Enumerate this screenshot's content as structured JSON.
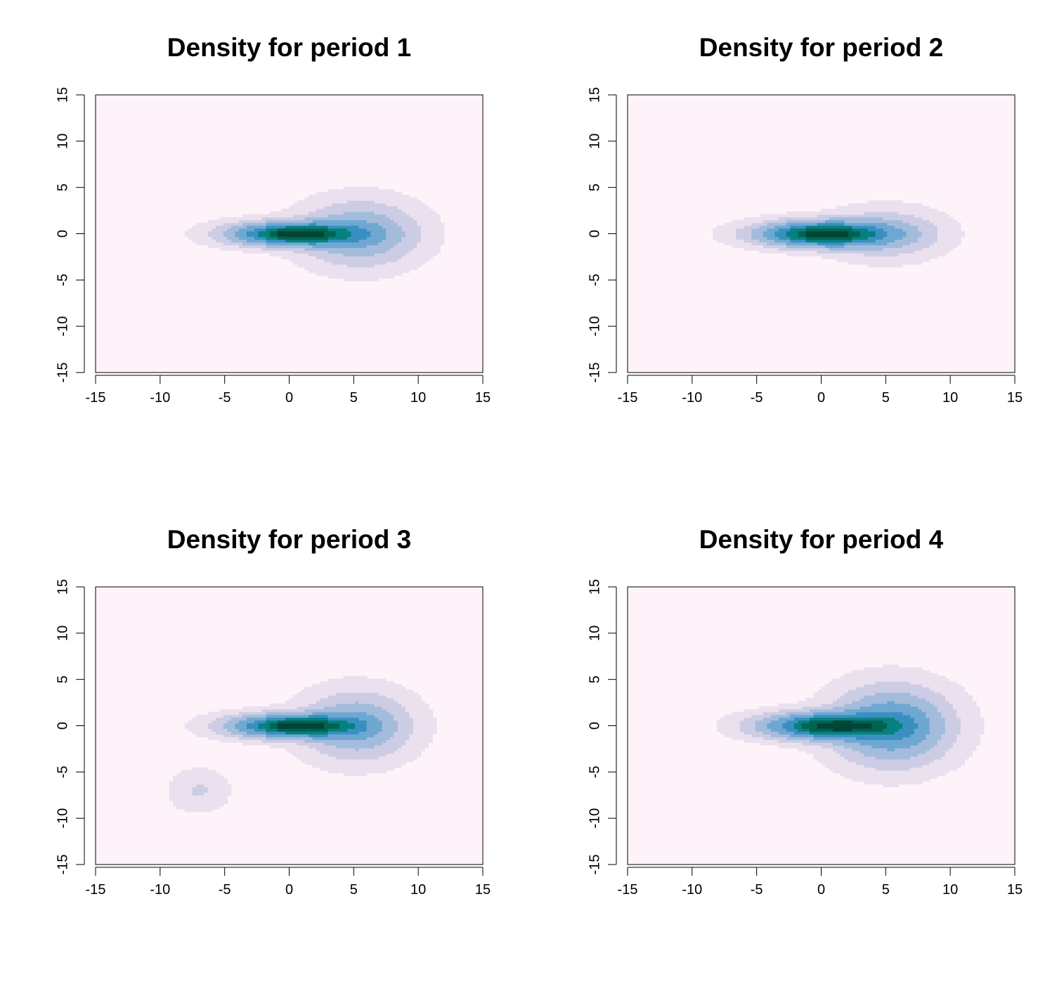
{
  "chart_data": [
    {
      "type": "heatmap",
      "title": "Density for period 1",
      "xlim": [
        -15,
        15
      ],
      "ylim": [
        -15,
        15
      ],
      "xticks": [
        "-15",
        "-10",
        "-5",
        "0",
        "5",
        "10",
        "15"
      ],
      "yticks": [
        "-15",
        "-10",
        "-5",
        "0",
        "5",
        "10",
        "15"
      ],
      "grid": false,
      "components": [
        {
          "cx": 0.5,
          "cy": 0,
          "sx": 2.9,
          "sy": 0.75,
          "w": 1.0
        },
        {
          "cx": 5.5,
          "cy": 0,
          "sx": 2.6,
          "sy": 2.0,
          "w": 0.3
        }
      ]
    },
    {
      "type": "heatmap",
      "title": "Density for period 2",
      "xlim": [
        -15,
        15
      ],
      "ylim": [
        -15,
        15
      ],
      "xticks": [
        "-15",
        "-10",
        "-5",
        "0",
        "5",
        "10",
        "15"
      ],
      "yticks": [
        "-15",
        "-10",
        "-5",
        "0",
        "5",
        "10",
        "15"
      ],
      "grid": false,
      "components": [
        {
          "cx": 0.2,
          "cy": 0,
          "sx": 2.9,
          "sy": 0.8,
          "w": 1.0
        },
        {
          "cx": 5.0,
          "cy": 0,
          "sx": 2.5,
          "sy": 1.5,
          "w": 0.2
        }
      ]
    },
    {
      "type": "heatmap",
      "title": "Density for period 3",
      "xlim": [
        -15,
        15
      ],
      "ylim": [
        -15,
        15
      ],
      "xticks": [
        "-15",
        "-10",
        "-5",
        "0",
        "5",
        "10",
        "15"
      ],
      "yticks": [
        "-15",
        "-10",
        "-5",
        "0",
        "5",
        "10",
        "15"
      ],
      "grid": false,
      "components": [
        {
          "cx": 0.5,
          "cy": 0,
          "sx": 2.9,
          "sy": 0.75,
          "w": 1.0
        },
        {
          "cx": 5.2,
          "cy": 0,
          "sx": 2.4,
          "sy": 2.1,
          "w": 0.3
        },
        {
          "cx": -7.0,
          "cy": -7.0,
          "sx": 1.3,
          "sy": 1.3,
          "w": 0.07
        }
      ]
    },
    {
      "type": "heatmap",
      "title": "Density for period 4",
      "xlim": [
        -15,
        15
      ],
      "ylim": [
        -15,
        15
      ],
      "xticks": [
        "-15",
        "-10",
        "-5",
        "0",
        "5",
        "10",
        "15"
      ],
      "yticks": [
        "-15",
        "-10",
        "-5",
        "0",
        "5",
        "10",
        "15"
      ],
      "grid": false,
      "components": [
        {
          "cx": 0.6,
          "cy": 0,
          "sx": 3.0,
          "sy": 0.85,
          "w": 1.0
        },
        {
          "cx": 5.5,
          "cy": 0,
          "sx": 2.6,
          "sy": 2.4,
          "w": 0.5
        }
      ]
    }
  ],
  "palette": [
    "#fff3fa",
    "#ebe0ee",
    "#cccde5",
    "#a4bcdb",
    "#6ea8d2",
    "#3990c0",
    "#078080",
    "#016351",
    "#014537"
  ]
}
